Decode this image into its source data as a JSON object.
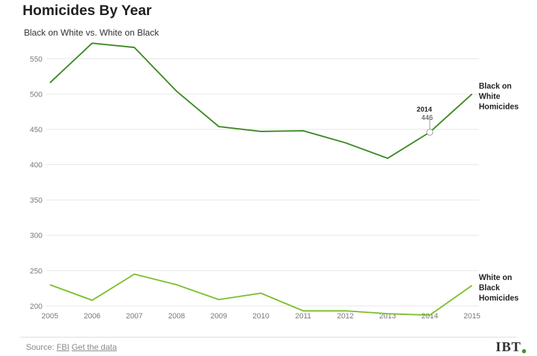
{
  "header": {
    "title": "Homicides By Year",
    "subtitle": "Black on White vs. White on Black"
  },
  "footer": {
    "source_prefix": "Source:",
    "source_link": "FBI",
    "data_link": "Get the data",
    "logo": "IBT"
  },
  "tooltip": {
    "year": "2014",
    "value": "446"
  },
  "colors": {
    "black_on_white": "#3b8a22",
    "white_on_black": "#7cbf2a",
    "grid": "#e6e6e6"
  },
  "chart_data": {
    "type": "line",
    "title": "Homicides By Year",
    "subtitle": "Black on White vs. White on Black",
    "x": [
      2005,
      2006,
      2007,
      2008,
      2009,
      2010,
      2011,
      2012,
      2013,
      2014,
      2015
    ],
    "ylim": [
      195,
      575
    ],
    "yticks": [
      200,
      250,
      300,
      350,
      400,
      450,
      500,
      550
    ],
    "grid": true,
    "legend": "inline-right",
    "series": [
      {
        "name": "Black on White Homicides",
        "label_lines": [
          "Black on",
          "White",
          "Homicides"
        ],
        "values": [
          516,
          572,
          566,
          504,
          454,
          447,
          448,
          431,
          409,
          446,
          500
        ]
      },
      {
        "name": "White on Black Homicides",
        "label_lines": [
          "White on",
          "Black",
          "Homicides"
        ],
        "values": [
          230,
          208,
          245,
          230,
          209,
          218,
          193,
          193,
          189,
          187,
          229
        ]
      }
    ]
  }
}
